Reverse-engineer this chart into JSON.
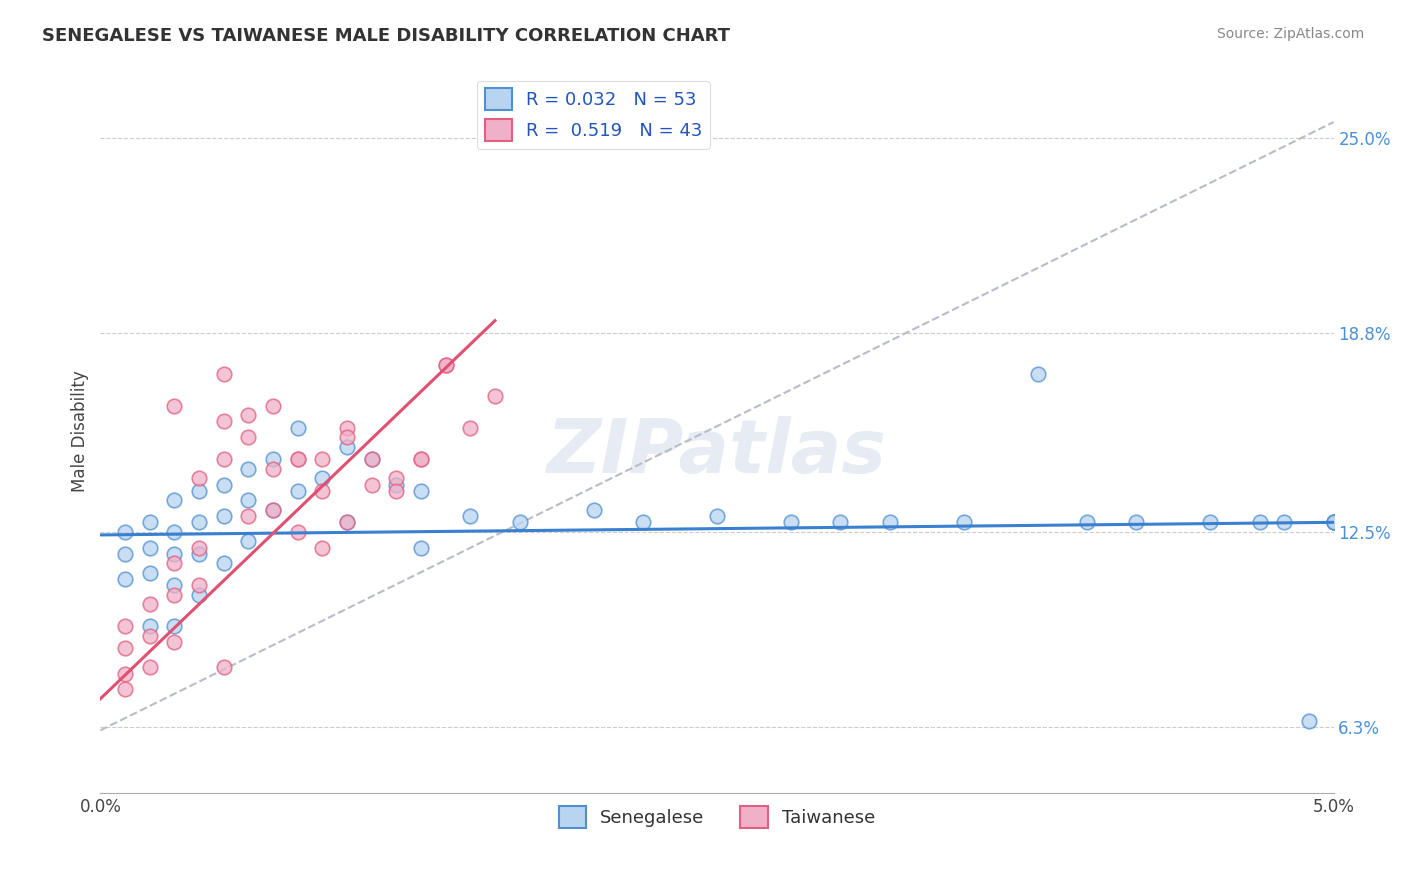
{
  "title": "SENEGALESE VS TAIWANESE MALE DISABILITY CORRELATION CHART",
  "source": "Source: ZipAtlas.com",
  "ylabel": "Male Disability",
  "x_min": 0.0,
  "x_max": 0.05,
  "y_min": 0.042,
  "y_max": 0.272,
  "x_ticks": [
    0.0,
    0.05
  ],
  "x_tick_labels": [
    "0.0%",
    "5.0%"
  ],
  "y_ticks_right": [
    0.063,
    0.125,
    0.188,
    0.25
  ],
  "y_tick_labels_right": [
    "6.3%",
    "12.5%",
    "18.8%",
    "25.0%"
  ],
  "senegalese_R": "0.032",
  "senegalese_N": "53",
  "taiwanese_R": "0.519",
  "taiwanese_N": "43",
  "color_senegalese_fill": "#b8d4f0",
  "color_senegalese_edge": "#5090d0",
  "color_taiwanese_fill": "#f0b0c8",
  "color_taiwanese_edge": "#e06080",
  "color_line_senegalese": "#3a80d0",
  "color_line_taiwanese": "#e05070",
  "color_line_dashed": "#b8bcc8",
  "legend_label_senegalese": "Senegalese",
  "legend_label_taiwanese": "Taiwanese",
  "watermark": "ZIPatlas",
  "senegalese_x": [
    0.001,
    0.001,
    0.001,
    0.002,
    0.002,
    0.002,
    0.002,
    0.003,
    0.003,
    0.003,
    0.003,
    0.003,
    0.004,
    0.004,
    0.004,
    0.004,
    0.005,
    0.005,
    0.005,
    0.006,
    0.006,
    0.006,
    0.007,
    0.007,
    0.008,
    0.008,
    0.009,
    0.01,
    0.01,
    0.011,
    0.012,
    0.013,
    0.013,
    0.015,
    0.017,
    0.02,
    0.022,
    0.025,
    0.028,
    0.03,
    0.032,
    0.035,
    0.038,
    0.04,
    0.042,
    0.045,
    0.047,
    0.048,
    0.049,
    0.05,
    0.05,
    0.05,
    0.05
  ],
  "senegalese_y": [
    0.125,
    0.118,
    0.11,
    0.128,
    0.12,
    0.112,
    0.095,
    0.135,
    0.125,
    0.118,
    0.108,
    0.095,
    0.138,
    0.128,
    0.118,
    0.105,
    0.14,
    0.13,
    0.115,
    0.145,
    0.135,
    0.122,
    0.148,
    0.132,
    0.158,
    0.138,
    0.142,
    0.152,
    0.128,
    0.148,
    0.14,
    0.138,
    0.12,
    0.13,
    0.128,
    0.132,
    0.128,
    0.13,
    0.128,
    0.128,
    0.128,
    0.128,
    0.175,
    0.128,
    0.128,
    0.128,
    0.128,
    0.128,
    0.065,
    0.128,
    0.128,
    0.128,
    0.128
  ],
  "taiwanese_x": [
    0.001,
    0.001,
    0.001,
    0.001,
    0.002,
    0.002,
    0.002,
    0.003,
    0.003,
    0.003,
    0.004,
    0.004,
    0.005,
    0.005,
    0.005,
    0.006,
    0.006,
    0.007,
    0.007,
    0.008,
    0.008,
    0.009,
    0.009,
    0.01,
    0.01,
    0.011,
    0.012,
    0.013,
    0.014,
    0.015,
    0.016,
    0.003,
    0.004,
    0.005,
    0.006,
    0.007,
    0.008,
    0.009,
    0.01,
    0.011,
    0.012,
    0.013,
    0.014
  ],
  "taiwanese_y": [
    0.095,
    0.088,
    0.08,
    0.075,
    0.102,
    0.092,
    0.082,
    0.115,
    0.105,
    0.09,
    0.12,
    0.108,
    0.175,
    0.16,
    0.082,
    0.155,
    0.13,
    0.165,
    0.132,
    0.148,
    0.125,
    0.148,
    0.12,
    0.158,
    0.128,
    0.148,
    0.142,
    0.148,
    0.178,
    0.158,
    0.168,
    0.165,
    0.142,
    0.148,
    0.162,
    0.145,
    0.148,
    0.138,
    0.155,
    0.14,
    0.138,
    0.148,
    0.178
  ]
}
